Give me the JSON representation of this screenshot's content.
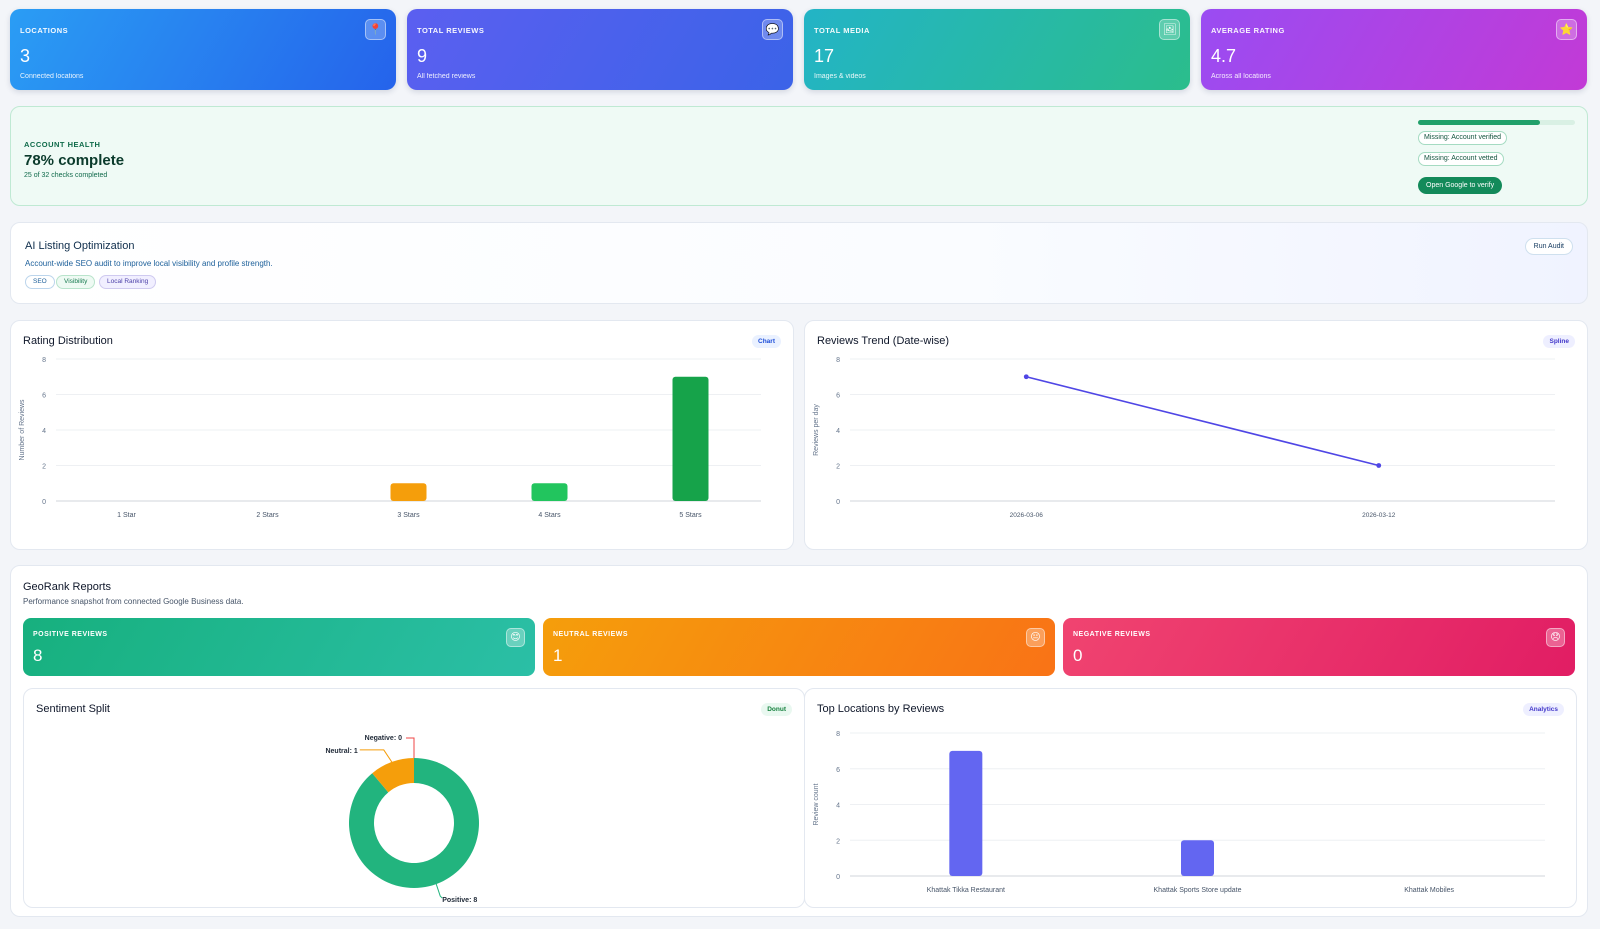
{
  "stats": [
    {
      "label": "LOCATIONS",
      "value": "3",
      "sub": "Connected locations",
      "icon": "map-pin-icon",
      "glyph": "📍",
      "gradient": [
        "#2a9df4",
        "#2563eb"
      ]
    },
    {
      "label": "TOTAL REVIEWS",
      "value": "9",
      "sub": "All fetched reviews",
      "icon": "chat-bubble-icon",
      "glyph": "💬",
      "gradient": [
        "#5b5ff0",
        "#3b63e8"
      ]
    },
    {
      "label": "TOTAL MEDIA",
      "value": "17",
      "sub": "Images & videos",
      "icon": "image-icon",
      "glyph": "🖼",
      "gradient": [
        "#23b4c6",
        "#2bbd8c"
      ]
    },
    {
      "label": "AVERAGE RATING",
      "value": "4.7",
      "sub": "Across all locations",
      "icon": "star-icon",
      "glyph": "⭐",
      "gradient": [
        "#9a4cf2",
        "#c23ad6"
      ]
    }
  ],
  "health": {
    "label": "ACCOUNT HEALTH",
    "percent_text": "78% complete",
    "checks": "25 of 32 checks completed",
    "progress": 0.78,
    "missing": [
      "Missing: Account verified",
      "Missing: Account vetted"
    ],
    "button": "Open Google to verify"
  },
  "ai": {
    "title": "AI Listing Optimization",
    "desc": "Account-wide SEO audit to improve local visibility and profile strength.",
    "chips": [
      "SEO",
      "Visibility",
      "Local Ranking"
    ],
    "button": "Run Audit"
  },
  "rating_card": {
    "title": "Rating Distribution",
    "badge": "Chart"
  },
  "trend_card": {
    "title": "Reviews Trend (Date-wise)",
    "badge": "Spline"
  },
  "geo": {
    "title": "GeoRank Reports",
    "desc": "Performance snapshot from connected Google Business data.",
    "sentiments": [
      {
        "label": "POSITIVE REVIEWS",
        "value": "8",
        "icon": "smile-icon",
        "glyph": "😊",
        "gradient": [
          "#17b07e",
          "#2bbfa6"
        ]
      },
      {
        "label": "NEUTRAL REVIEWS",
        "value": "1",
        "icon": "neutral-face-icon",
        "glyph": "😐",
        "gradient": [
          "#f59e0b",
          "#f97316"
        ]
      },
      {
        "label": "NEGATIVE REVIEWS",
        "value": "0",
        "icon": "sad-face-icon",
        "glyph": "😞",
        "gradient": [
          "#f04470",
          "#e11d64"
        ]
      }
    ]
  },
  "sentiment_card": {
    "title": "Sentiment Split",
    "badge": "Donut"
  },
  "locations_card": {
    "title": "Top Locations by Reviews",
    "badge": "Analytics"
  },
  "chart_data": [
    {
      "type": "bar",
      "ylabel": "Number of Reviews",
      "xlabel": "",
      "categories": [
        "1 Star",
        "2 Stars",
        "3 Stars",
        "4 Stars",
        "5 Stars"
      ],
      "values": [
        0,
        0,
        1,
        1,
        7
      ],
      "colors": [
        "#ef4444",
        "#f97316",
        "#f59e0b",
        "#22c55e",
        "#16a34a"
      ],
      "ylim": [
        0,
        8
      ],
      "yticks": [
        0,
        2,
        4,
        6,
        8
      ],
      "grid": true
    },
    {
      "type": "line",
      "ylabel": "Reviews per day",
      "xlabel": "",
      "x": [
        "2026-03-06",
        "2026-03-12"
      ],
      "values": [
        7,
        2
      ],
      "color": "#4f46e5",
      "ylim": [
        0,
        8
      ],
      "yticks": [
        0,
        2,
        4,
        6,
        8
      ],
      "grid": true
    },
    {
      "type": "pie",
      "subtype": "donut",
      "slices": [
        {
          "label": "Positive",
          "value": 8,
          "color": "#22b47e"
        },
        {
          "label": "Neutral",
          "value": 1,
          "color": "#f59e0b"
        },
        {
          "label": "Negative",
          "value": 0,
          "color": "#ef4444"
        }
      ],
      "slice_labels": [
        "Positive: 8",
        "Neutral: 1",
        "Negative: 0"
      ]
    },
    {
      "type": "bar",
      "ylabel": "Review count",
      "xlabel": "",
      "categories": [
        "Khattak Tikka Restaurant",
        "Khattak Sports Store update",
        "Khattak Mobiles"
      ],
      "values": [
        7,
        2,
        0
      ],
      "color": "#6366f1",
      "ylim": [
        0,
        8
      ],
      "yticks": [
        0,
        2,
        4,
        6,
        8
      ],
      "grid": true
    }
  ]
}
